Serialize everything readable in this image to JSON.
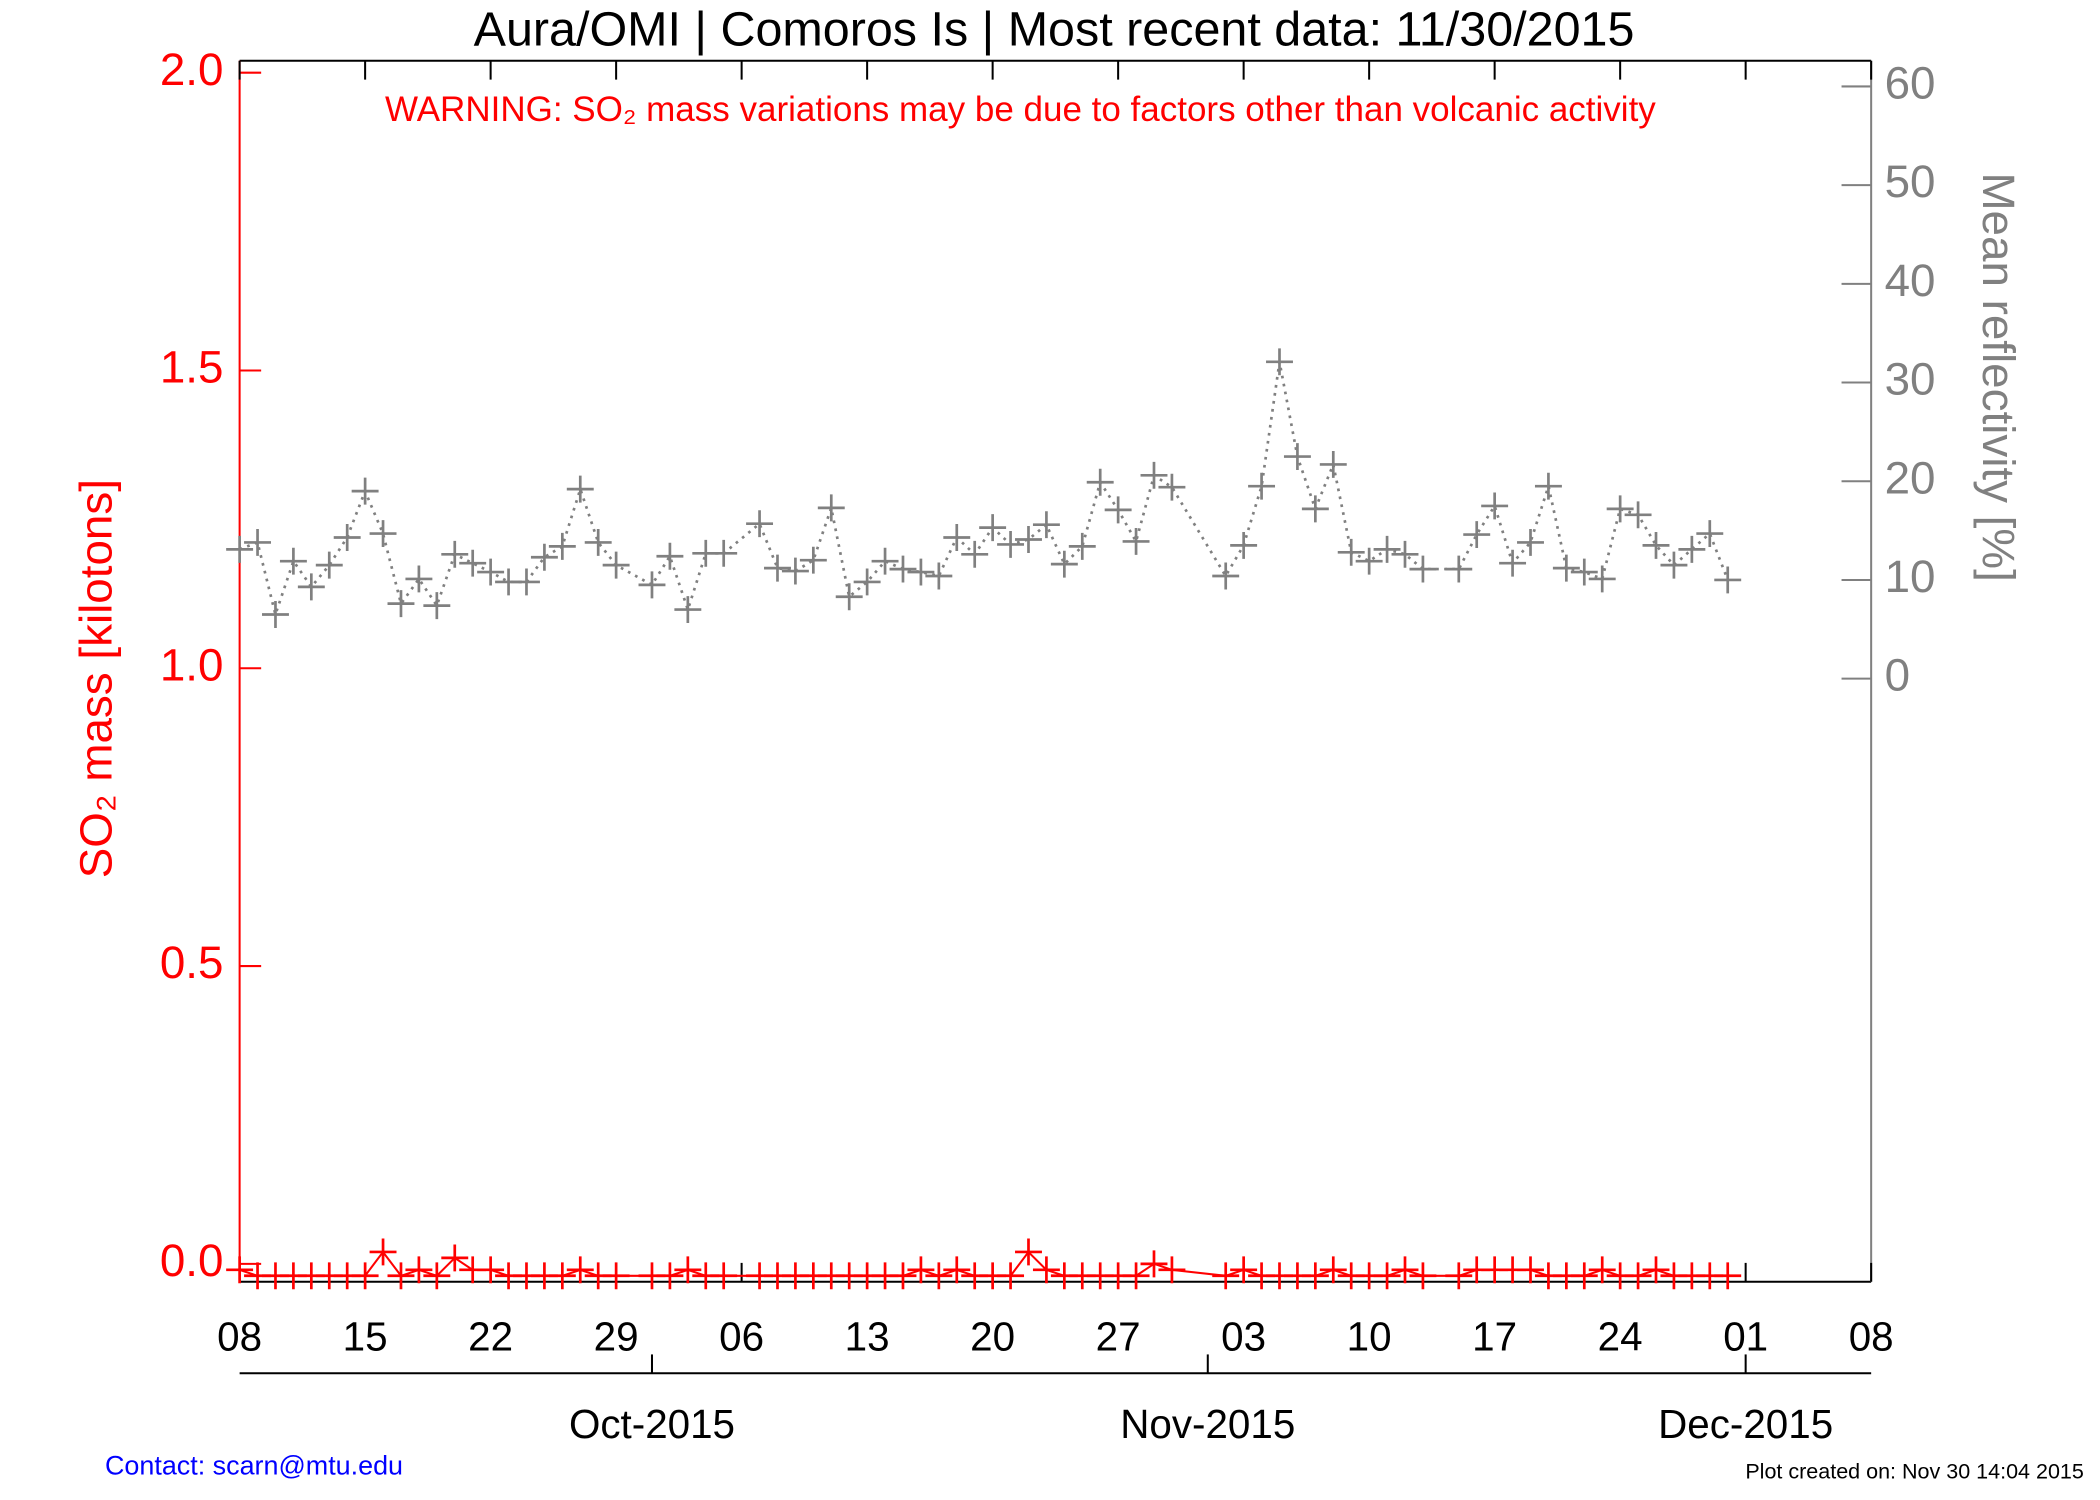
{
  "chart_data": {
    "type": "line",
    "title": "Aura/OMI | Comoros Is | Most recent data: 11/30/2015",
    "annotation": "WARNING: SO₂ mass variations may be due to factors other than volcanic activity",
    "ylabel": "SO₂ mass [kilotons]",
    "y2label": "Mean reflectivity [%]",
    "footer_left": "Contact: scarn@mtu.edu",
    "footer_right": "Plot created on: Nov 30 14:04 2015",
    "x": [
      "2015-09-08",
      "2015-09-09",
      "2015-09-10",
      "2015-09-11",
      "2015-09-12",
      "2015-09-13",
      "2015-09-14",
      "2015-09-15",
      "2015-09-16",
      "2015-09-17",
      "2015-09-18",
      "2015-09-19",
      "2015-09-20",
      "2015-09-21",
      "2015-09-22",
      "2015-09-23",
      "2015-09-24",
      "2015-09-25",
      "2015-09-26",
      "2015-09-27",
      "2015-09-28",
      "2015-09-29",
      "2015-10-01",
      "2015-10-02",
      "2015-10-03",
      "2015-10-04",
      "2015-10-05",
      "2015-10-07",
      "2015-10-08",
      "2015-10-09",
      "2015-10-10",
      "2015-10-11",
      "2015-10-12",
      "2015-10-13",
      "2015-10-14",
      "2015-10-15",
      "2015-10-16",
      "2015-10-17",
      "2015-10-18",
      "2015-10-19",
      "2015-10-20",
      "2015-10-21",
      "2015-10-22",
      "2015-10-23",
      "2015-10-24",
      "2015-10-25",
      "2015-10-26",
      "2015-10-27",
      "2015-10-28",
      "2015-10-29",
      "2015-10-30",
      "2015-11-02",
      "2015-11-03",
      "2015-11-04",
      "2015-11-05",
      "2015-11-06",
      "2015-11-07",
      "2015-11-08",
      "2015-11-09",
      "2015-11-10",
      "2015-11-11",
      "2015-11-12",
      "2015-11-13",
      "2015-11-15",
      "2015-11-16",
      "2015-11-17",
      "2015-11-18",
      "2015-11-19",
      "2015-11-20",
      "2015-11-21",
      "2015-11-22",
      "2015-11-23",
      "2015-11-24",
      "2015-11-25",
      "2015-11-26",
      "2015-11-27",
      "2015-11-28",
      "2015-11-29",
      "2015-11-30"
    ],
    "series": [
      {
        "color": "#ff0000",
        "axis": "y",
        "dash": "none",
        "values": [
          -0.01,
          -0.02,
          -0.02,
          -0.02,
          -0.02,
          -0.02,
          -0.02,
          -0.02,
          0.02,
          -0.02,
          -0.01,
          -0.02,
          0.01,
          -0.01,
          -0.01,
          -0.02,
          -0.02,
          -0.02,
          -0.02,
          -0.01,
          -0.02,
          -0.02,
          -0.02,
          -0.02,
          -0.01,
          -0.02,
          -0.02,
          -0.02,
          -0.02,
          -0.02,
          -0.02,
          -0.02,
          -0.02,
          -0.02,
          -0.02,
          -0.02,
          -0.01,
          -0.02,
          -0.01,
          -0.02,
          -0.02,
          -0.02,
          0.02,
          -0.01,
          -0.02,
          -0.02,
          -0.02,
          -0.02,
          -0.02,
          0.0,
          -0.01,
          -0.02,
          -0.01,
          -0.02,
          -0.02,
          -0.02,
          -0.02,
          -0.01,
          -0.02,
          -0.02,
          -0.02,
          -0.01,
          -0.02,
          -0.02,
          -0.01,
          -0.01,
          -0.01,
          -0.01,
          -0.02,
          -0.02,
          -0.02,
          -0.01,
          -0.02,
          -0.02,
          -0.01,
          -0.02,
          -0.02,
          -0.02,
          -0.02
        ]
      },
      {
        "color": "#808080",
        "axis": "y2",
        "dash": "dotted",
        "values": [
          13.1,
          13.8,
          6.5,
          11.9,
          9.3,
          11.5,
          14.3,
          19.0,
          14.7,
          7.6,
          10.1,
          7.4,
          12.6,
          11.7,
          10.8,
          9.8,
          9.8,
          12.3,
          13.4,
          19.2,
          13.8,
          11.5,
          9.5,
          12.4,
          7.0,
          12.7,
          12.7,
          15.7,
          11.2,
          10.9,
          12.0,
          17.3,
          8.3,
          9.8,
          11.9,
          11.1,
          10.8,
          10.4,
          14.3,
          12.6,
          15.3,
          13.6,
          14.1,
          15.6,
          11.6,
          13.4,
          19.9,
          17.1,
          13.9,
          20.6,
          19.4,
          10.4,
          13.5,
          19.5,
          32.1,
          22.5,
          17.2,
          21.7,
          12.8,
          11.9,
          13.1,
          12.6,
          11.1,
          11.1,
          14.6,
          17.5,
          11.7,
          13.8,
          19.5,
          11.2,
          10.8,
          10.1,
          17.2,
          16.6,
          13.5,
          11.5,
          13.1,
          14.7,
          10.0
        ]
      }
    ],
    "xlim": [
      "2015-09-08",
      "2015-12-08"
    ],
    "xticks": [
      {
        "value": "2015-09-08",
        "label": "08"
      },
      {
        "value": "2015-09-15",
        "label": "15"
      },
      {
        "value": "2015-09-22",
        "label": "22"
      },
      {
        "value": "2015-09-29",
        "label": "29"
      },
      {
        "value": "2015-10-06",
        "label": "06"
      },
      {
        "value": "2015-10-13",
        "label": "13"
      },
      {
        "value": "2015-10-20",
        "label": "20"
      },
      {
        "value": "2015-10-27",
        "label": "27"
      },
      {
        "value": "2015-11-03",
        "label": "03"
      },
      {
        "value": "2015-11-10",
        "label": "10"
      },
      {
        "value": "2015-11-17",
        "label": "17"
      },
      {
        "value": "2015-11-24",
        "label": "24"
      },
      {
        "value": "2015-12-01",
        "label": "01"
      },
      {
        "value": "2015-12-08",
        "label": "08"
      }
    ],
    "month_ticks": [
      {
        "value": "2015-10-01",
        "label": "Oct-2015"
      },
      {
        "value": "2015-11-01",
        "label": "Nov-2015"
      },
      {
        "value": "2015-12-01",
        "label": "Dec-2015"
      }
    ],
    "ylim": [
      -0.03,
      2.02
    ],
    "yticks": [
      {
        "value": 0,
        "label": "0.0"
      },
      0.5,
      {
        "value": 1,
        "label": "1.0"
      },
      1.5,
      {
        "value": 2,
        "label": "2.0"
      }
    ],
    "y2lim": [
      -61.1,
      62.6
    ],
    "y2ticks": [
      0,
      10,
      20,
      30,
      40,
      50,
      60
    ]
  }
}
